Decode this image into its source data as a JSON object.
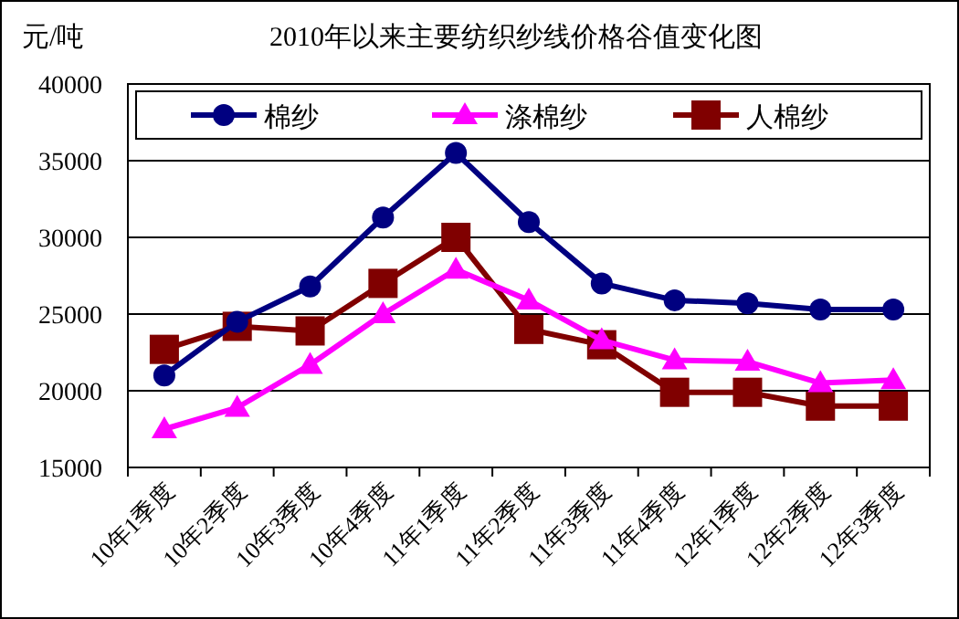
{
  "chart_data": {
    "type": "line",
    "title": "2010年以来主要纺织纱线价格谷值变化图",
    "ylabel": "元/吨",
    "categories": [
      "10年1季度",
      "10年2季度",
      "10年3季度",
      "10年4季度",
      "11年1季度",
      "11年2季度",
      "11年3季度",
      "11年4季度",
      "12年1季度",
      "12年2季度",
      "12年3季度"
    ],
    "ylim": [
      15000,
      40000
    ],
    "yticks": [
      15000,
      20000,
      25000,
      30000,
      35000,
      40000
    ],
    "grid": "y",
    "legend": "top",
    "series": [
      {
        "name": "棉纱",
        "color": "#000080",
        "marker": "circle",
        "values": [
          21000,
          24500,
          26800,
          31300,
          35500,
          31000,
          27000,
          25900,
          25700,
          25300,
          25300
        ]
      },
      {
        "name": "涤棉纱",
        "color": "#ff00ff",
        "marker": "triangle",
        "values": [
          17500,
          18900,
          21700,
          25000,
          27900,
          25900,
          23300,
          22000,
          21900,
          20500,
          20700
        ]
      },
      {
        "name": "人棉纱",
        "color": "#800000",
        "marker": "square",
        "values": [
          22700,
          24200,
          23900,
          27000,
          30000,
          24000,
          23000,
          19900,
          19900,
          19000,
          19000
        ]
      }
    ]
  }
}
